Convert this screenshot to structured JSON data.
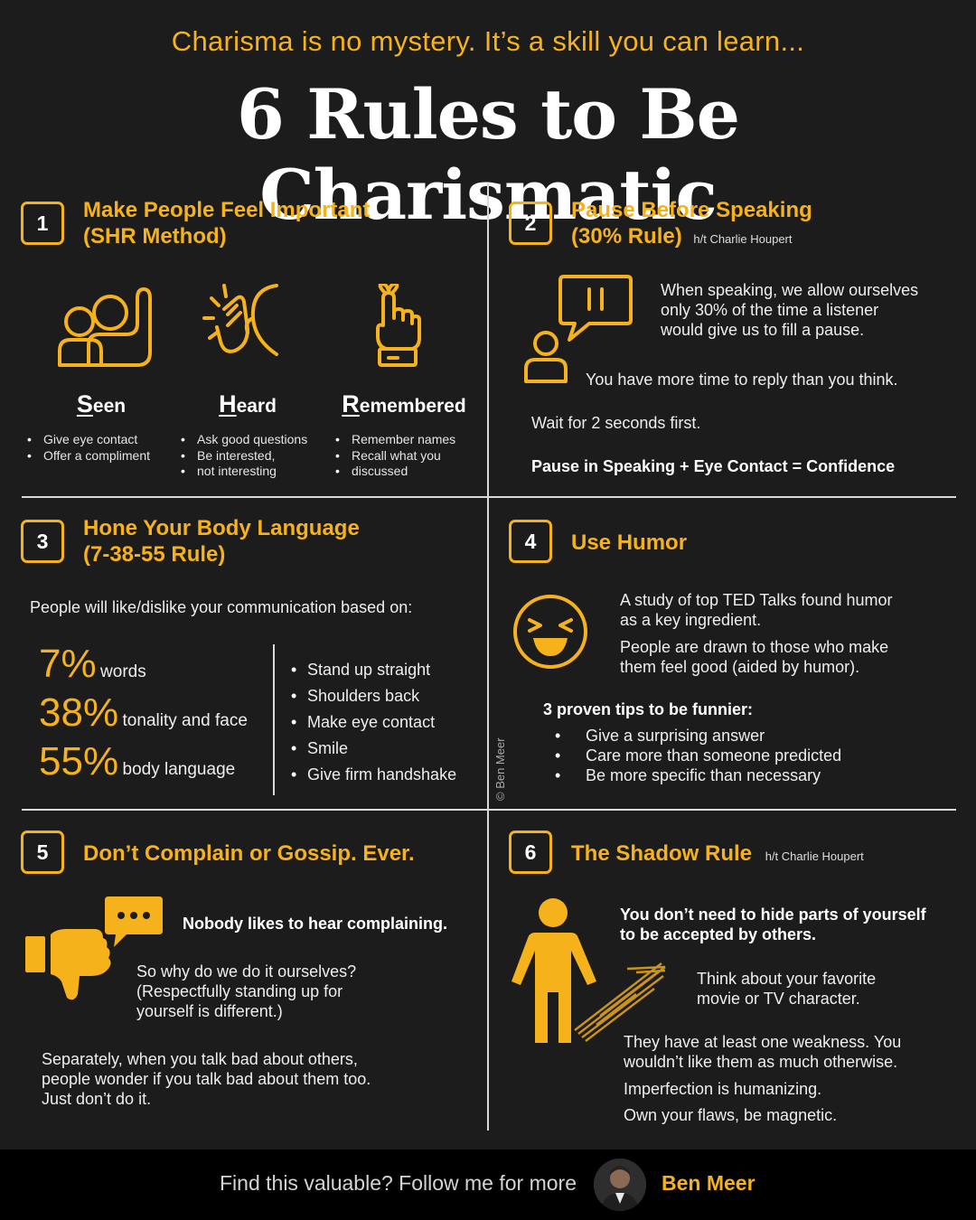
{
  "header": {
    "subtitle": "Charisma is no mystery. It’s a skill you can learn...",
    "title": "6 Rules to Be Charismatic"
  },
  "colors": {
    "accent": "#f6b21a",
    "background": "#1c1c1c",
    "footer_bg": "#000000"
  },
  "copyright": "© Ben Meer",
  "s1": {
    "num": "1",
    "title1": "Make People Feel Important",
    "title2": "(SHR Method)",
    "icons": [
      "people-icon",
      "listening-ear-icon",
      "string-finger-icon"
    ],
    "seen": {
      "cap": "S",
      "rest": "een",
      "items": [
        "Give eye contact",
        "Offer a compliment"
      ]
    },
    "heard": {
      "cap": "H",
      "rest": "eard",
      "items": [
        "Ask good questions",
        "Be interested,",
        "not interesting"
      ]
    },
    "remembered": {
      "cap": "R",
      "rest": "emembered",
      "items": [
        "Remember names",
        "Recall what you",
        "discussed"
      ]
    }
  },
  "s2": {
    "num": "2",
    "title1": "Pause Before Speaking",
    "title2": "(30% Rule)",
    "ht": "h/t Charlie Houpert",
    "icons": [
      "pause-speech-bubble-icon",
      "person-icon"
    ],
    "p1": [
      "When speaking, we allow ourselves",
      "only 30% of the time a listener",
      "would give us to fill a pause."
    ],
    "p2": "You have more time to reply than you think.",
    "p3": "Wait for 2 seconds first.",
    "p4": "Pause in Speaking + Eye Contact = Confidence"
  },
  "s3": {
    "num": "3",
    "title1": "Hone Your Body Language",
    "title2": "(7-38-55 Rule)",
    "intro": "People will like/dislike your communication based on:",
    "stats": [
      {
        "pct": "7%",
        "label": "words"
      },
      {
        "pct": "38%",
        "label": "tonality and face"
      },
      {
        "pct": "55%",
        "label": "body language"
      }
    ],
    "tips": [
      "Stand up straight",
      "Shoulders back",
      "Make eye contact",
      "Smile",
      "Give firm handshake"
    ]
  },
  "s4": {
    "num": "4",
    "title": "Use Humor",
    "icons": [
      "laughing-face-icon"
    ],
    "p1": [
      "A study of top TED Talks found humor",
      "as a key ingredient."
    ],
    "p2": [
      "People are drawn to those who make",
      "them feel good (aided by humor)."
    ],
    "tips_title": "3 proven tips to be funnier:",
    "tips": [
      "Give a surprising answer",
      "Care more than someone predicted",
      "Be more specific than necessary"
    ]
  },
  "s5": {
    "num": "5",
    "title": "Don’t Complain or Gossip. Ever.",
    "icons": [
      "thumbs-down-icon",
      "chat-bubble-icon"
    ],
    "p1": "Nobody likes to hear complaining.",
    "p2": [
      "So why do we do it ourselves?",
      "(Respectfully standing up for",
      "yourself is different.)"
    ],
    "p3": [
      "Separately, when you talk bad about others,",
      "people wonder if you talk bad about them too.",
      "Just don’t do it."
    ]
  },
  "s6": {
    "num": "6",
    "title": "The Shadow Rule",
    "ht": "h/t Charlie Houpert",
    "icons": [
      "person-shadow-icon"
    ],
    "p1": [
      "You don’t need to hide parts of yourself",
      "to be accepted by others."
    ],
    "p2": [
      "Think about your favorite",
      "movie or TV character."
    ],
    "p3": [
      "They have at least one weakness. You",
      "wouldn’t like them as much otherwise."
    ],
    "p4": "Imperfection is humanizing.",
    "p5": "Own your flaws, be magnetic."
  },
  "footer": {
    "cta": "Find this valuable? Follow me for more",
    "name": "Ben Meer"
  }
}
